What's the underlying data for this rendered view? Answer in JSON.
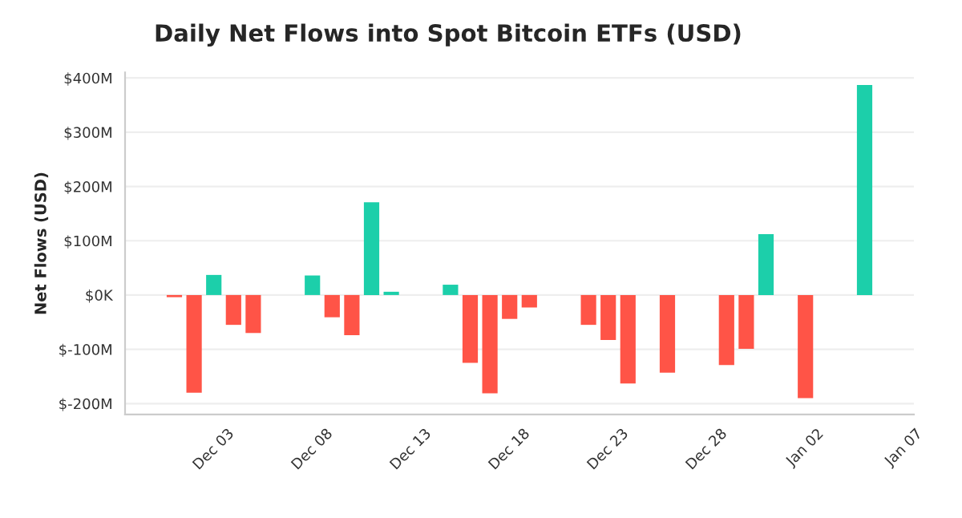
{
  "chart_data": {
    "type": "bar",
    "title": "Daily Net Flows into Spot Bitcoin ETFs (USD)",
    "ylabel": "Net Flows (USD)",
    "categories": [
      null,
      null,
      null,
      null,
      "Dec 03",
      null,
      null,
      null,
      null,
      "Dec 08",
      null,
      null,
      null,
      null,
      "Dec 13",
      null,
      null,
      null,
      null,
      "Dec 18",
      null,
      null,
      null,
      null,
      "Dec 23",
      null,
      null,
      null,
      null,
      "Dec 28",
      null,
      null,
      null,
      null,
      "Jan 02",
      null,
      null,
      null,
      null,
      "Jan 07"
    ],
    "values": [
      null,
      null,
      -4,
      -180,
      37,
      -55,
      -70,
      null,
      null,
      36,
      -41,
      -74,
      171,
      6,
      null,
      null,
      19,
      -125,
      -181,
      -44,
      -23,
      null,
      null,
      -55,
      -83,
      -163,
      null,
      -143,
      null,
      null,
      -129,
      -99,
      112,
      null,
      -190,
      null,
      null,
      387,
      null,
      null
    ],
    "colors": [
      null,
      null,
      "#ff5447",
      "#ff5447",
      "#1ccfaa",
      "#ff5447",
      "#ff5447",
      null,
      null,
      "#1ccfaa",
      "#ff5447",
      "#ff5447",
      "#1ccfaa",
      "#1ccfaa",
      null,
      null,
      "#1ccfaa",
      "#ff5447",
      "#ff5447",
      "#ff5447",
      "#ff5447",
      null,
      null,
      "#ff5447",
      "#ff5447",
      "#ff5447",
      null,
      "#ff5447",
      null,
      null,
      "#ff5447",
      "#ff5447",
      "#1ccfaa",
      null,
      "#ff5447",
      null,
      null,
      "#1ccfaa",
      null,
      null
    ],
    "ylim": [
      -220,
      410
    ],
    "yticks": [
      {
        "value": -200,
        "label": "$-200M"
      },
      {
        "value": -100,
        "label": "$-100M"
      },
      {
        "value": 0,
        "label": "$0K"
      },
      {
        "value": 100,
        "label": "$100M"
      },
      {
        "value": 200,
        "label": "$200M"
      },
      {
        "value": 300,
        "label": "$300M"
      },
      {
        "value": 400,
        "label": "$400M"
      }
    ],
    "grid": "y",
    "legend": false
  }
}
